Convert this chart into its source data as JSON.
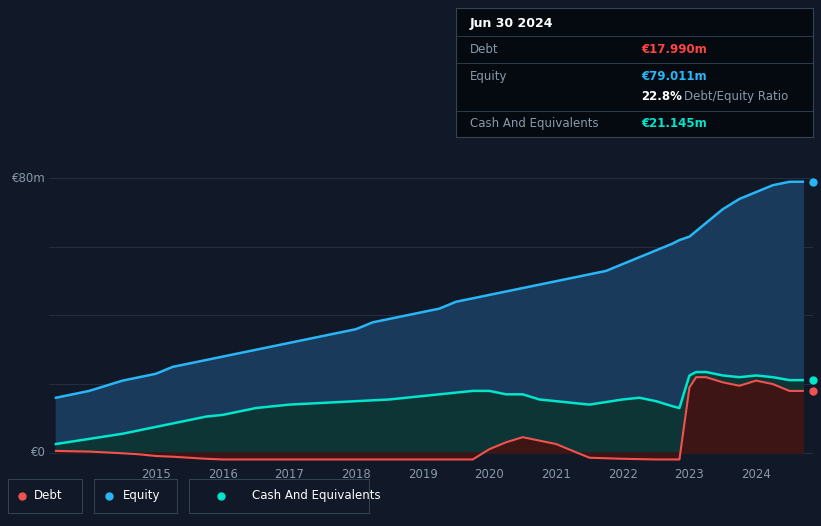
{
  "background_color": "#111827",
  "plot_bg_color": "#111827",
  "grid_color": "#263347",
  "title_box": {
    "date": "Jun 30 2024",
    "debt_label": "Debt",
    "debt_value": "€17.990m",
    "debt_color": "#ff4444",
    "equity_label": "Equity",
    "equity_value": "€79.011m",
    "equity_color": "#29b6f6",
    "ratio_bold": "22.8%",
    "ratio_text": "Debt/Equity Ratio",
    "ratio_bold_color": "#ffffff",
    "ratio_text_color": "#8899aa",
    "cash_label": "Cash And Equivalents",
    "cash_value": "€21.145m",
    "cash_color": "#00e5cc",
    "box_bg": "#050a10",
    "label_color": "#8899aa",
    "border_color": "#334455"
  },
  "ylabel_text": "€80m",
  "ylabel0_text": "€0",
  "yaxis_label_color": "#8899aa",
  "x_tick_color": "#8899aa",
  "ylim": [
    -3,
    86
  ],
  "xlim_start": 2013.4,
  "xlim_end": 2024.85,
  "x_ticks": [
    2015,
    2016,
    2017,
    2018,
    2019,
    2020,
    2021,
    2022,
    2023,
    2024
  ],
  "equity_line_color": "#29b6f6",
  "equity_fill_color": "#1a3a5c",
  "debt_line_color": "#ef5350",
  "debt_fill_color": "#3d1515",
  "cash_line_color": "#00e5cc",
  "cash_fill_color": "#0d3535",
  "equity_x": [
    2013.5,
    2014.0,
    2014.5,
    2014.75,
    2015.0,
    2015.25,
    2015.5,
    2015.75,
    2016.0,
    2016.25,
    2016.5,
    2016.75,
    2017.0,
    2017.25,
    2017.5,
    2017.75,
    2018.0,
    2018.25,
    2018.5,
    2018.75,
    2019.0,
    2019.25,
    2019.5,
    2019.75,
    2020.0,
    2020.25,
    2020.5,
    2020.75,
    2021.0,
    2021.25,
    2021.5,
    2021.75,
    2022.0,
    2022.25,
    2022.5,
    2022.75,
    2022.85,
    2023.0,
    2023.25,
    2023.5,
    2023.75,
    2024.0,
    2024.25,
    2024.5,
    2024.7
  ],
  "equity_y": [
    16,
    18,
    21,
    22,
    23,
    25,
    26,
    27,
    28,
    29,
    30,
    31,
    32,
    33,
    34,
    35,
    36,
    38,
    39,
    40,
    41,
    42,
    44,
    45,
    46,
    47,
    48,
    49,
    50,
    51,
    52,
    53,
    55,
    57,
    59,
    61,
    62,
    63,
    67,
    71,
    74,
    76,
    78,
    79,
    79.011
  ],
  "debt_x": [
    2013.5,
    2014.0,
    2014.5,
    2014.75,
    2015.0,
    2015.25,
    2015.5,
    2015.75,
    2016.0,
    2016.5,
    2017.0,
    2017.5,
    2018.0,
    2018.5,
    2019.0,
    2019.5,
    2019.75,
    2020.0,
    2020.25,
    2020.5,
    2020.75,
    2021.0,
    2021.5,
    2022.0,
    2022.5,
    2022.75,
    2022.85,
    2023.0,
    2023.1,
    2023.25,
    2023.5,
    2023.75,
    2024.0,
    2024.25,
    2024.5,
    2024.7
  ],
  "debt_y": [
    0.5,
    0.3,
    -0.2,
    -0.5,
    -1.0,
    -1.2,
    -1.5,
    -1.8,
    -2.0,
    -2.0,
    -2.0,
    -2.0,
    -2.0,
    -2.0,
    -2.0,
    -2.0,
    -2.0,
    1.0,
    3.0,
    4.5,
    3.5,
    2.5,
    -1.5,
    -1.8,
    -2.0,
    -2.0,
    -2.0,
    19.0,
    22.0,
    22.0,
    20.5,
    19.5,
    21.0,
    20.0,
    17.99,
    17.99
  ],
  "cash_x": [
    2013.5,
    2014.0,
    2014.5,
    2014.75,
    2015.0,
    2015.25,
    2015.5,
    2015.75,
    2016.0,
    2016.25,
    2016.5,
    2016.75,
    2017.0,
    2017.5,
    2018.0,
    2018.5,
    2019.0,
    2019.25,
    2019.5,
    2019.75,
    2020.0,
    2020.25,
    2020.5,
    2020.75,
    2021.0,
    2021.5,
    2022.0,
    2022.25,
    2022.5,
    2022.75,
    2022.85,
    2023.0,
    2023.1,
    2023.25,
    2023.5,
    2023.75,
    2024.0,
    2024.25,
    2024.5,
    2024.7
  ],
  "cash_y": [
    2.5,
    4.0,
    5.5,
    6.5,
    7.5,
    8.5,
    9.5,
    10.5,
    11.0,
    12.0,
    13.0,
    13.5,
    14.0,
    14.5,
    15.0,
    15.5,
    16.5,
    17.0,
    17.5,
    18.0,
    18.0,
    17.0,
    17.0,
    15.5,
    15.0,
    14.0,
    15.5,
    16.0,
    15.0,
    13.5,
    13.0,
    22.5,
    23.5,
    23.5,
    22.5,
    22.0,
    22.5,
    22.0,
    21.145,
    21.145
  ],
  "legend_items": [
    {
      "label": "Debt",
      "color": "#ef5350"
    },
    {
      "label": "Equity",
      "color": "#29b6f6"
    },
    {
      "label": "Cash And Equivalents",
      "color": "#00e5cc"
    }
  ],
  "grid_y_values": [
    0,
    20,
    40,
    60,
    80
  ]
}
